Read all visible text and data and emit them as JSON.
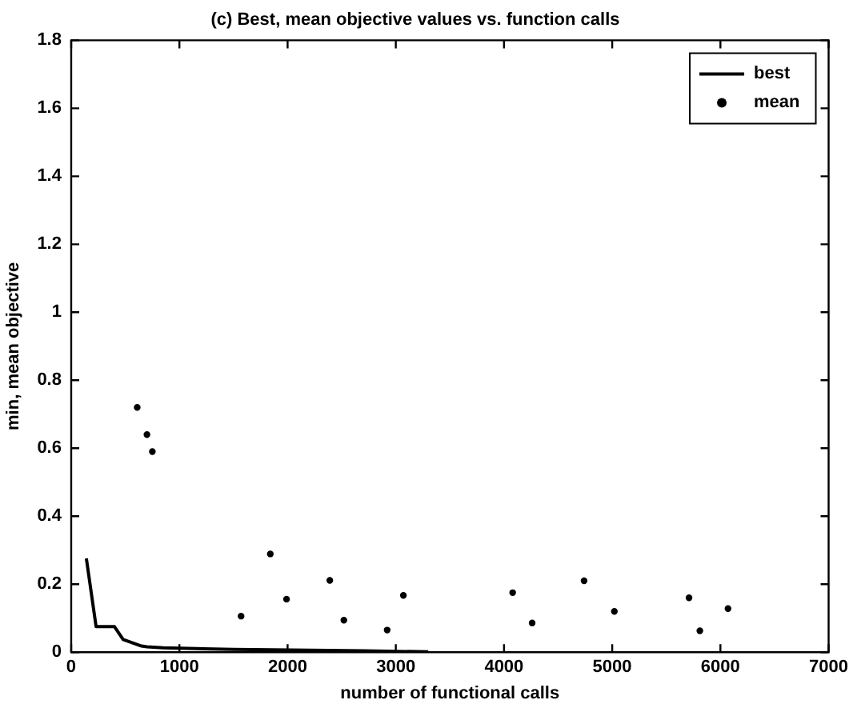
{
  "chart_data": {
    "type": "line",
    "title": "(c) Best, mean objective values vs. function calls",
    "xlabel": "number of functional calls",
    "ylabel": "min, mean objective",
    "xlim": [
      0,
      7000
    ],
    "xticks": [
      0,
      1000,
      2000,
      3000,
      4000,
      5000,
      6000,
      7000
    ],
    "ylim": [
      0,
      1.8
    ],
    "yticks": [
      0,
      0.2,
      0.4,
      0.6,
      0.8,
      1,
      1.2,
      1.4,
      1.6,
      1.8
    ],
    "grid": false,
    "legend": "top right",
    "series": [
      {
        "name": "best",
        "color": "#000000",
        "marker": "none",
        "line_style": "solid",
        "x": [
          140,
          230,
          400,
          480,
          650,
          700,
          850,
          1500,
          2200,
          2700,
          3300
        ],
        "values": [
          0.276,
          0.075,
          0.075,
          0.037,
          0.018,
          0.016,
          0.013,
          0.008,
          0.006,
          0.004,
          0.001
        ]
      },
      {
        "name": "mean",
        "type": "scatter",
        "color": "#000000",
        "marker": "circle",
        "x": [
          610,
          700,
          750,
          1570,
          1840,
          1990,
          2390,
          2520,
          2920,
          3070,
          4080,
          4260,
          4740,
          5020,
          5710,
          5810,
          6070
        ],
        "values": [
          0.72,
          0.64,
          0.59,
          0.106,
          0.289,
          0.156,
          0.211,
          0.094,
          0.065,
          0.167,
          0.175,
          0.086,
          0.21,
          0.12,
          0.16,
          0.063,
          0.128
        ]
      }
    ]
  }
}
